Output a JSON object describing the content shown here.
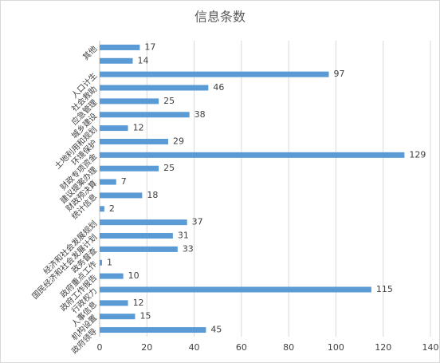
{
  "chart_data": {
    "type": "barh",
    "title": "信息条数",
    "categories": [
      "其他",
      null,
      "人口计生",
      "社会救助",
      "应急管理",
      "城乡建设",
      "土地利用和规划",
      "环境保护",
      "财政专项资金",
      "建议提案办理",
      "财政预决算",
      "统计信息",
      null,
      "经济和社会发展规划",
      "国民经济和社会发展计划",
      "政务督查",
      "政府重点工作",
      "政府工作报告",
      "行政权力",
      "人事信息",
      "机构设置",
      "政府领导"
    ],
    "values": [
      17,
      14,
      97,
      46,
      25,
      38,
      12,
      29,
      129,
      25,
      7,
      18,
      2,
      37,
      31,
      33,
      1,
      10,
      115,
      12,
      15,
      45
    ],
    "color": "#5b9bd5",
    "xlim": [
      0,
      140
    ],
    "xticks": [
      0,
      20,
      40,
      60,
      80,
      100,
      120,
      140
    ],
    "grid": true
  }
}
